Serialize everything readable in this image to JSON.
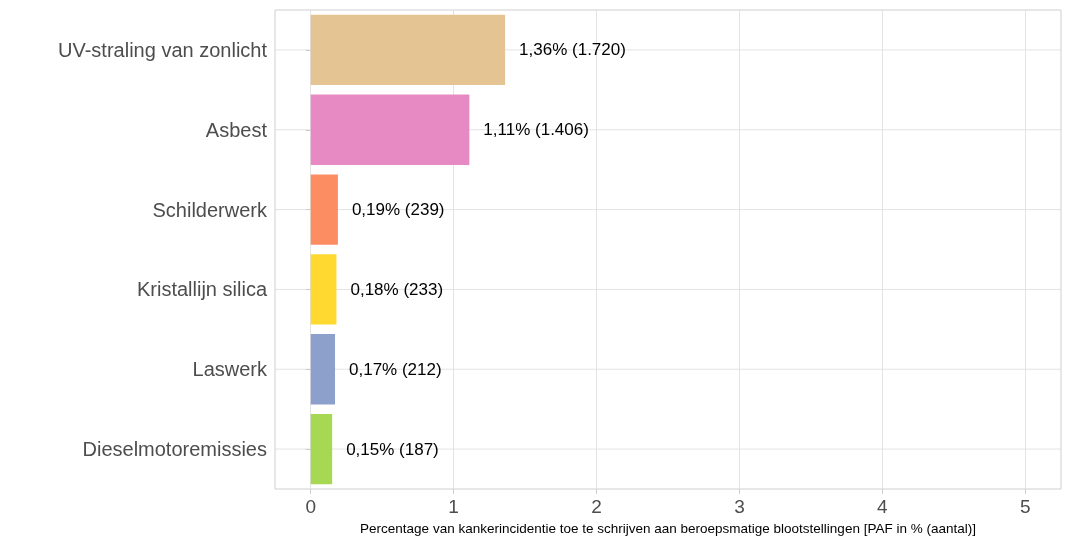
{
  "chart_data": {
    "type": "bar",
    "orientation": "horizontal",
    "xlabel": "Percentage van kankerincidentie toe te schrijven aan beroepsmatige blootstellingen [PAF in % (aantal)]",
    "categories": [
      "UV-straling van zonlicht",
      "Asbest",
      "Schilderwerk",
      "Kristallijn silica",
      "Laswerk",
      "Dieselmotoremissies"
    ],
    "values": [
      1.36,
      1.11,
      0.19,
      0.18,
      0.17,
      0.15
    ],
    "colors": [
      "#e5c494",
      "#e78ac3",
      "#fc8d62",
      "#ffd92f",
      "#8da0cb",
      "#a6d854"
    ],
    "value_labels": [
      "1,36% (1.720)",
      "1,11% (1.406)",
      "0,19% (239)",
      "0,18% (233)",
      "0,17% (212)",
      "0,15% (187)"
    ],
    "xlim": [
      -0.25,
      5.25
    ],
    "xticks": [
      0,
      1,
      2,
      3,
      4,
      5
    ],
    "grid": true
  }
}
